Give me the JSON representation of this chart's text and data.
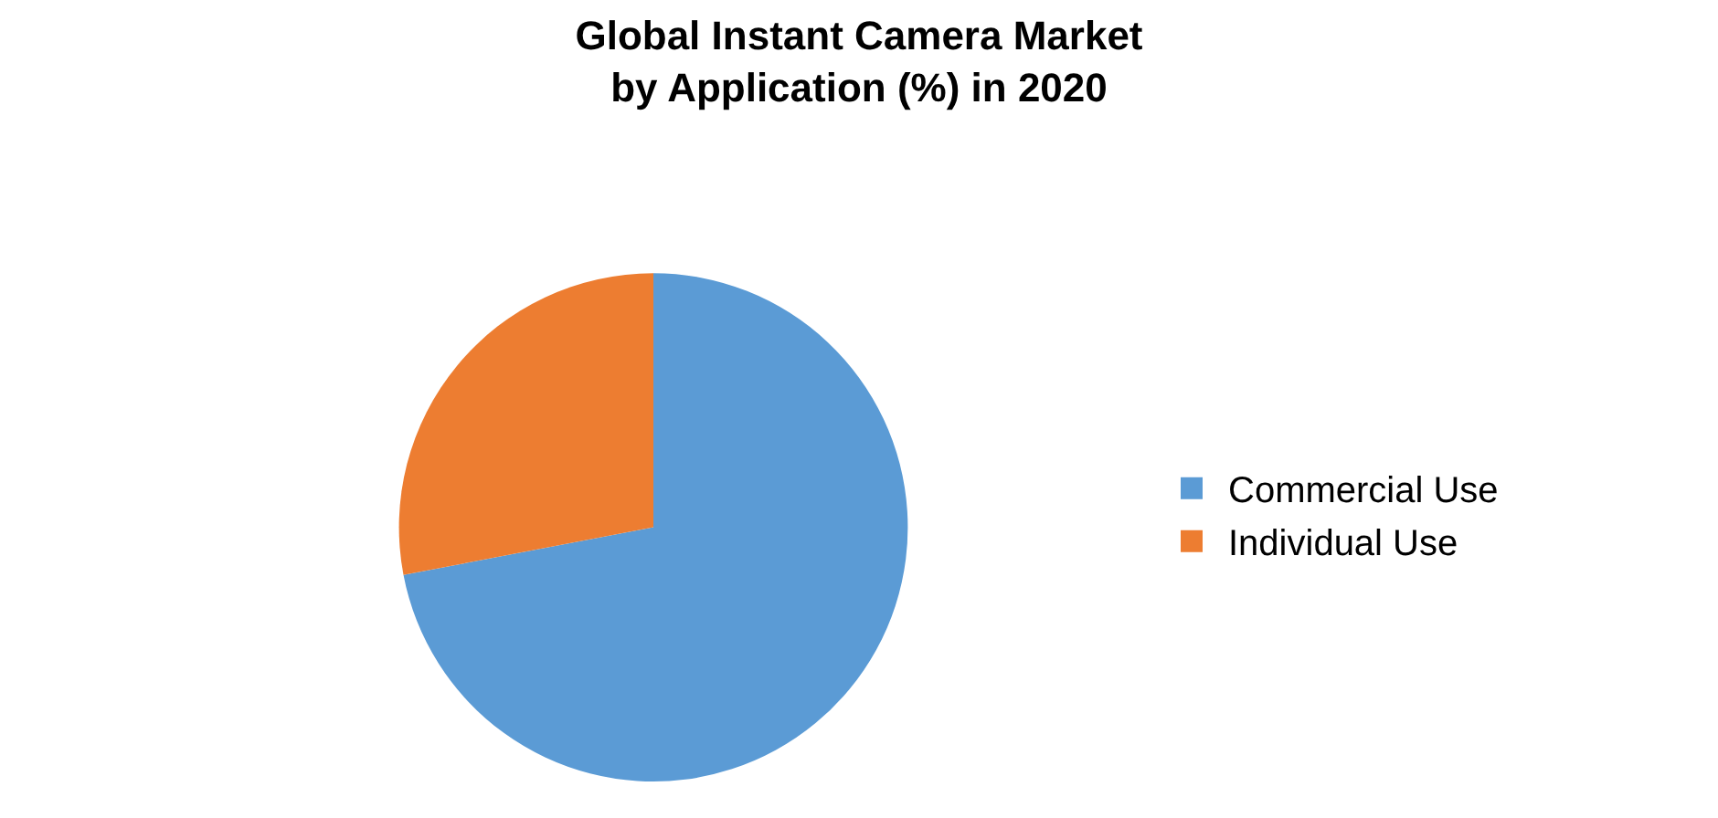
{
  "chart_data": {
    "type": "pie",
    "title": "Global Instant Camera Market\nby Application (%) in 2020",
    "categories": [
      "Commercial Use",
      "Individual Use"
    ],
    "values": [
      72,
      28
    ],
    "colors": [
      "#5b9bd5",
      "#ed7d31"
    ],
    "legend": "right"
  }
}
